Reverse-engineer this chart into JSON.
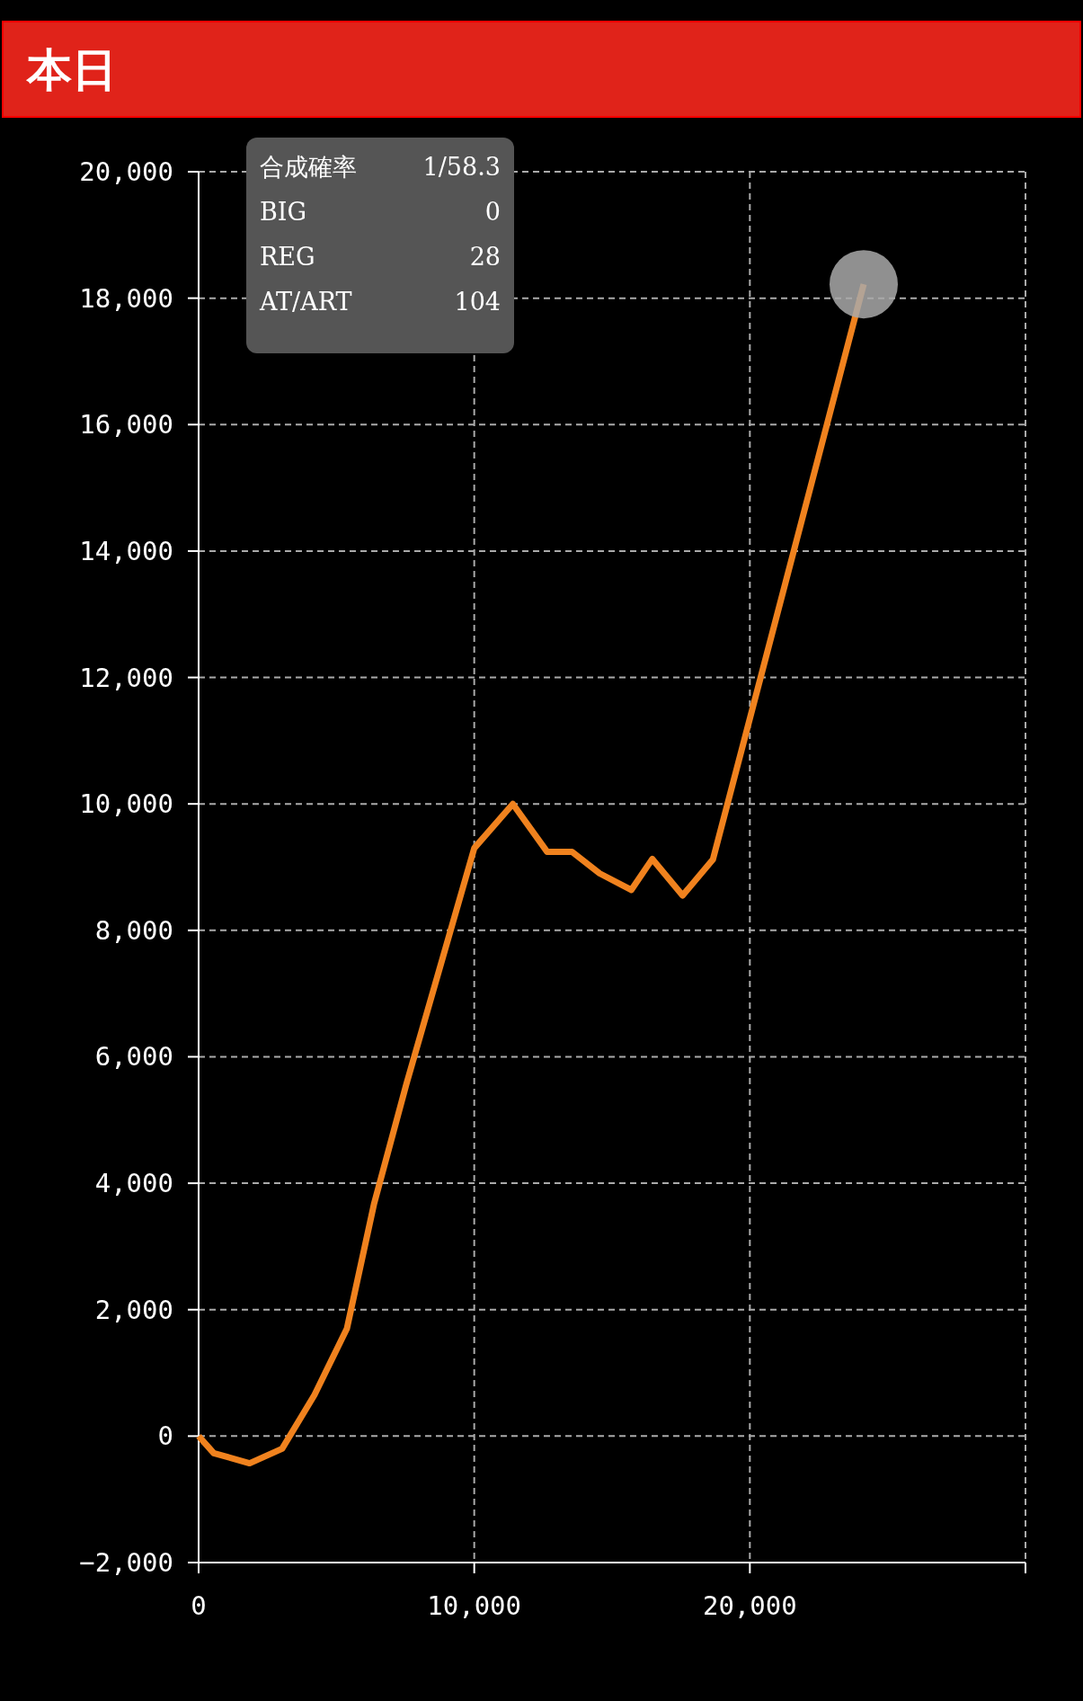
{
  "chart_data": {
    "type": "line",
    "title": "本日",
    "xlim": [
      0,
      30000
    ],
    "ylim": [
      -2000,
      20000
    ],
    "xticks": [
      0,
      {
        "value": 10000,
        "label": "10,000"
      },
      {
        "value": 20000,
        "label": "20,000"
      },
      {
        "value": 30000,
        "label": null
      }
    ],
    "yticks": [
      {
        "value": -2000,
        "label": "−2,000"
      },
      0,
      {
        "value": 2000,
        "label": "2,000"
      },
      {
        "value": 4000,
        "label": "4,000"
      },
      {
        "value": 6000,
        "label": "6,000"
      },
      {
        "value": 8000,
        "label": "8,000"
      },
      {
        "value": 10000,
        "label": "10,000"
      },
      {
        "value": 12000,
        "label": "12,000"
      },
      {
        "value": 14000,
        "label": "14,000"
      },
      {
        "value": 16000,
        "label": "16,000"
      },
      {
        "value": 18000,
        "label": "18,000"
      },
      {
        "value": 20000,
        "label": "20,000"
      }
    ],
    "grid": true,
    "annotations": [
      "合成確率",
      "1/58.3",
      "BIG",
      "0",
      "REG",
      "28",
      "AT/ART",
      "104"
    ],
    "series": [
      {
        "color": "#f0821e",
        "x": [
          0,
          550,
          1850,
          3030,
          4200,
          5380,
          6370,
          7540,
          10000,
          11400,
          12650,
          13550,
          14550,
          15700,
          16460,
          17560,
          18660,
          24130
        ],
        "values": [
          0,
          -270,
          -430,
          -200,
          650,
          1700,
          3680,
          5570,
          9300,
          10000,
          9240,
          9240,
          8900,
          8640,
          9130,
          8550,
          9120,
          18220
        ]
      },
      {
        "type": "scatter",
        "color": "#a9a9a9",
        "marker": "circle",
        "x": [
          24130
        ],
        "values": [
          18220
        ]
      }
    ]
  }
}
